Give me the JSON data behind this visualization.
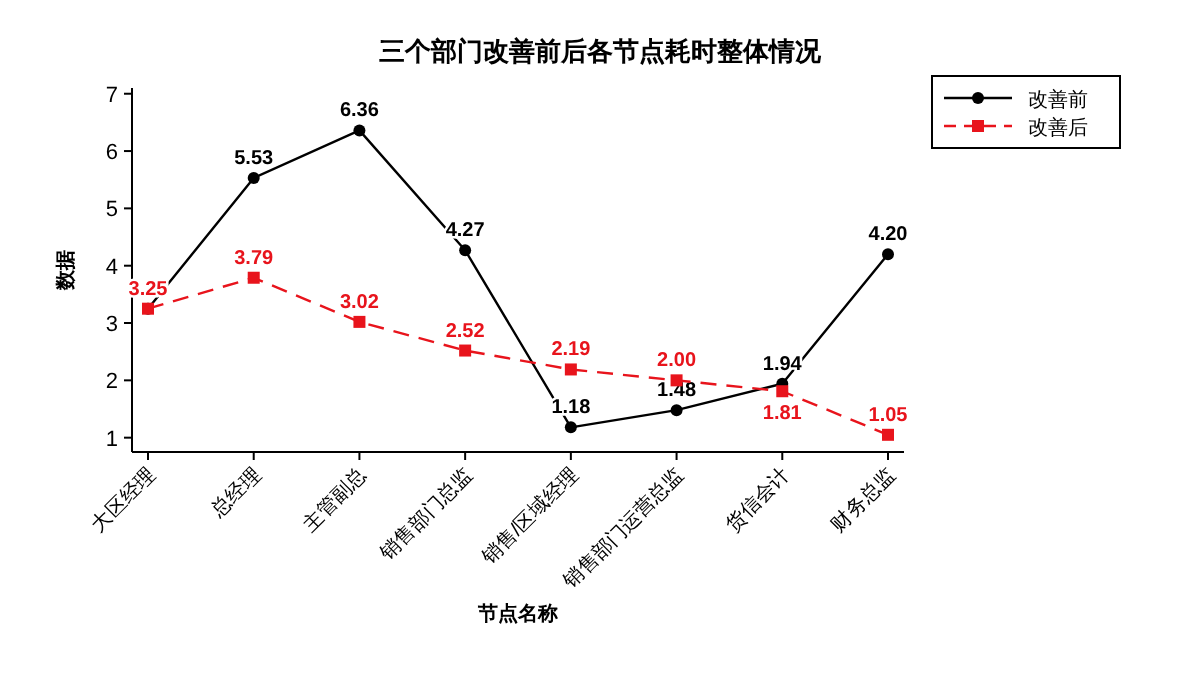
{
  "chart_data": {
    "type": "line",
    "title": "三个部门改善前后各节点耗时整体情况",
    "xlabel": "节点名称",
    "ylabel": "数据",
    "categories": [
      "大区经理",
      "总经理",
      "主管副总",
      "销售部门总监",
      "销售/区域经理",
      "销售部门运营总监",
      "货信会计",
      "财务总监"
    ],
    "series": [
      {
        "name": "改善前",
        "color": "#000000",
        "marker": "circle",
        "line_style": "solid",
        "values": [
          3.25,
          5.53,
          6.36,
          4.27,
          1.18,
          1.48,
          1.94,
          4.2
        ],
        "value_labels": [
          null,
          "5.53",
          "6.36",
          "4.27",
          "1.18",
          "1.48",
          "1.94",
          "4.20"
        ]
      },
      {
        "name": "改善后",
        "color": "#e8141c",
        "marker": "square",
        "line_style": "dashed",
        "values": [
          3.25,
          3.79,
          3.02,
          2.52,
          2.19,
          2.0,
          1.81,
          1.05
        ],
        "value_labels": [
          "3.25",
          "3.79",
          "3.02",
          "2.52",
          "2.19",
          "2.00",
          "1.81",
          "1.05"
        ]
      }
    ],
    "ylim": [
      0.75,
      7.1
    ],
    "yticks": [
      1,
      2,
      3,
      4,
      5,
      6,
      7
    ],
    "grid": false,
    "legend": "top right"
  }
}
